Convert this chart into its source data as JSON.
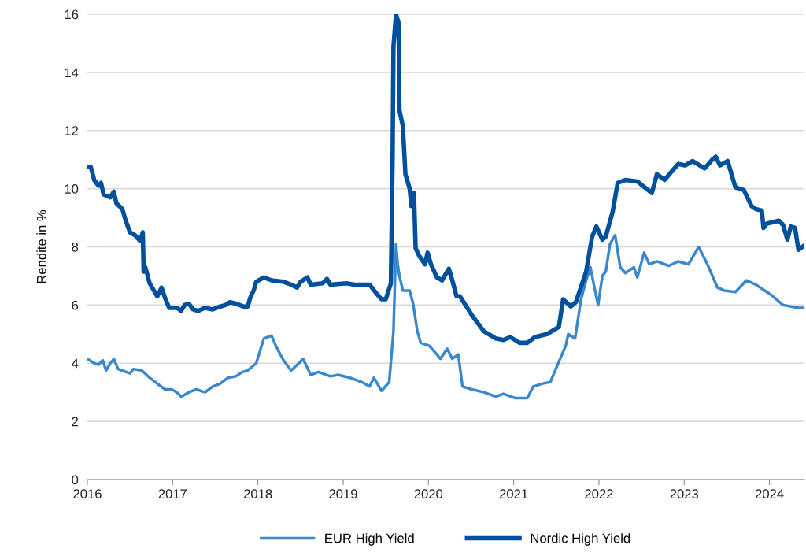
{
  "chart_data": {
    "type": "line",
    "ylabel": "Rendite in %",
    "xlim": [
      2016,
      2024.41
    ],
    "xticks": [
      2016,
      2017,
      2018,
      2019,
      2020,
      2021,
      2022,
      2023,
      2024
    ],
    "ylim": [
      0,
      16
    ],
    "yticks": [
      0,
      2,
      4,
      6,
      8,
      10,
      12,
      14,
      16
    ],
    "grid": "y",
    "legend": "bottom",
    "marker": "none",
    "line_style": "solid",
    "series": [
      {
        "name": "EUR High Yield",
        "color": "#3a87cc",
        "x": [
          2016.0,
          2016.08,
          2016.13,
          2016.18,
          2016.22,
          2016.27,
          2016.31,
          2016.36,
          2016.5,
          2016.54,
          2016.64,
          2016.73,
          2016.82,
          2016.91,
          2016.99,
          2017.05,
          2017.1,
          2017.19,
          2017.28,
          2017.38,
          2017.47,
          2017.56,
          2017.65,
          2017.74,
          2017.82,
          2017.88,
          2017.98,
          2018.07,
          2018.16,
          2018.21,
          2018.3,
          2018.39,
          2018.48,
          2018.53,
          2018.62,
          2018.71,
          2018.85,
          2018.94,
          2019.08,
          2019.22,
          2019.31,
          2019.36,
          2019.45,
          2019.54,
          2019.59,
          2019.62,
          2019.64,
          2019.66,
          2019.7,
          2019.78,
          2019.82,
          2019.87,
          2019.91,
          2020.01,
          2020.1,
          2020.14,
          2020.22,
          2020.28,
          2020.35,
          2020.4,
          2020.51,
          2020.65,
          2020.79,
          2020.88,
          2021.02,
          2021.16,
          2021.23,
          2021.34,
          2021.43,
          2021.53,
          2021.61,
          2021.64,
          2021.72,
          2021.79,
          2021.85,
          2021.9,
          2021.94,
          2021.99,
          2022.04,
          2022.08,
          2022.13,
          2022.19,
          2022.25,
          2022.31,
          2022.41,
          2022.45,
          2022.53,
          2022.59,
          2022.68,
          2022.82,
          2022.93,
          2023.05,
          2023.17,
          2023.28,
          2023.39,
          2023.47,
          2023.6,
          2023.73,
          2023.84,
          2024.02,
          2024.16,
          2024.34,
          2024.41
        ],
        "values": [
          4.15,
          4.0,
          3.95,
          4.1,
          3.75,
          4.0,
          4.15,
          3.8,
          3.65,
          3.8,
          3.75,
          3.5,
          3.3,
          3.1,
          3.1,
          3.0,
          2.85,
          3.0,
          3.1,
          3.0,
          3.2,
          3.3,
          3.5,
          3.55,
          3.7,
          3.75,
          4.0,
          4.85,
          4.95,
          4.6,
          4.1,
          3.75,
          4.0,
          4.15,
          3.6,
          3.7,
          3.55,
          3.6,
          3.5,
          3.35,
          3.2,
          3.5,
          3.05,
          3.35,
          5.1,
          8.1,
          7.4,
          7.0,
          6.5,
          6.5,
          6.05,
          5.1,
          4.7,
          4.6,
          4.3,
          4.15,
          4.5,
          4.15,
          4.3,
          3.2,
          3.1,
          3.0,
          2.85,
          2.95,
          2.8,
          2.8,
          3.2,
          3.3,
          3.35,
          4.05,
          4.6,
          5.0,
          4.85,
          6.2,
          6.85,
          7.3,
          6.7,
          6.0,
          7.0,
          7.15,
          8.1,
          8.4,
          7.3,
          7.1,
          7.3,
          6.95,
          7.8,
          7.4,
          7.5,
          7.35,
          7.5,
          7.4,
          8.0,
          7.35,
          6.6,
          6.5,
          6.45,
          6.85,
          6.7,
          6.35,
          6.0,
          5.9,
          5.9
        ]
      },
      {
        "name": "Nordic High Yield",
        "color": "#00509c",
        "x": [
          2016.0,
          2016.04,
          2016.08,
          2016.13,
          2016.16,
          2016.19,
          2016.27,
          2016.31,
          2016.34,
          2016.41,
          2016.45,
          2016.5,
          2016.56,
          2016.62,
          2016.65,
          2016.66,
          2016.68,
          2016.73,
          2016.78,
          2016.82,
          2016.87,
          2016.91,
          2016.96,
          2017.05,
          2017.1,
          2017.14,
          2017.19,
          2017.24,
          2017.3,
          2017.38,
          2017.47,
          2017.56,
          2017.62,
          2017.67,
          2017.74,
          2017.83,
          2017.88,
          2017.91,
          2017.95,
          2017.98,
          2018.07,
          2018.16,
          2018.3,
          2018.39,
          2018.46,
          2018.5,
          2018.58,
          2018.62,
          2018.76,
          2018.81,
          2018.85,
          2019.04,
          2019.13,
          2019.31,
          2019.39,
          2019.45,
          2019.5,
          2019.56,
          2019.58,
          2019.59,
          2019.62,
          2019.65,
          2019.66,
          2019.7,
          2019.73,
          2019.78,
          2019.8,
          2019.83,
          2019.85,
          2019.89,
          2019.96,
          2019.99,
          2020.03,
          2020.1,
          2020.16,
          2020.24,
          2020.28,
          2020.33,
          2020.37,
          2020.51,
          2020.65,
          2020.79,
          2020.88,
          2020.96,
          2021.07,
          2021.16,
          2021.25,
          2021.39,
          2021.53,
          2021.58,
          2021.67,
          2021.73,
          2021.85,
          2021.92,
          2021.97,
          2022.04,
          2022.08,
          2022.16,
          2022.22,
          2022.31,
          2022.45,
          2022.62,
          2022.68,
          2022.77,
          2022.87,
          2022.93,
          2023.01,
          2023.1,
          2023.24,
          2023.33,
          2023.37,
          2023.42,
          2023.51,
          2023.6,
          2023.7,
          2023.79,
          2023.84,
          2023.91,
          2023.93,
          2023.97,
          2024.11,
          2024.16,
          2024.21,
          2024.25,
          2024.3,
          2024.34,
          2024.41
        ],
        "values": [
          10.75,
          10.75,
          10.3,
          10.1,
          10.2,
          9.8,
          9.7,
          9.9,
          9.5,
          9.3,
          8.9,
          8.5,
          8.4,
          8.2,
          8.5,
          7.15,
          7.3,
          6.75,
          6.5,
          6.3,
          6.6,
          6.25,
          5.9,
          5.9,
          5.8,
          6.0,
          6.05,
          5.85,
          5.8,
          5.9,
          5.85,
          5.95,
          6.0,
          6.1,
          6.05,
          5.95,
          5.95,
          6.25,
          6.5,
          6.8,
          6.95,
          6.85,
          6.8,
          6.7,
          6.6,
          6.8,
          6.95,
          6.7,
          6.75,
          6.9,
          6.7,
          6.75,
          6.7,
          6.7,
          6.4,
          6.2,
          6.2,
          6.75,
          11.1,
          14.9,
          16.0,
          15.7,
          12.7,
          12.15,
          10.5,
          10.0,
          9.4,
          9.85,
          7.95,
          7.7,
          7.4,
          7.8,
          7.4,
          6.95,
          6.85,
          7.25,
          6.85,
          6.3,
          6.3,
          5.65,
          5.1,
          4.85,
          4.8,
          4.9,
          4.7,
          4.7,
          4.9,
          5.0,
          5.25,
          6.2,
          5.95,
          6.1,
          7.15,
          8.35,
          8.7,
          8.25,
          8.35,
          9.2,
          10.2,
          10.3,
          10.25,
          9.85,
          10.5,
          10.3,
          10.65,
          10.85,
          10.8,
          10.95,
          10.7,
          11.0,
          11.1,
          10.8,
          10.95,
          10.05,
          9.95,
          9.4,
          9.3,
          9.25,
          8.65,
          8.8,
          8.9,
          8.75,
          8.25,
          8.7,
          8.65,
          7.9,
          8.05
        ]
      }
    ]
  }
}
